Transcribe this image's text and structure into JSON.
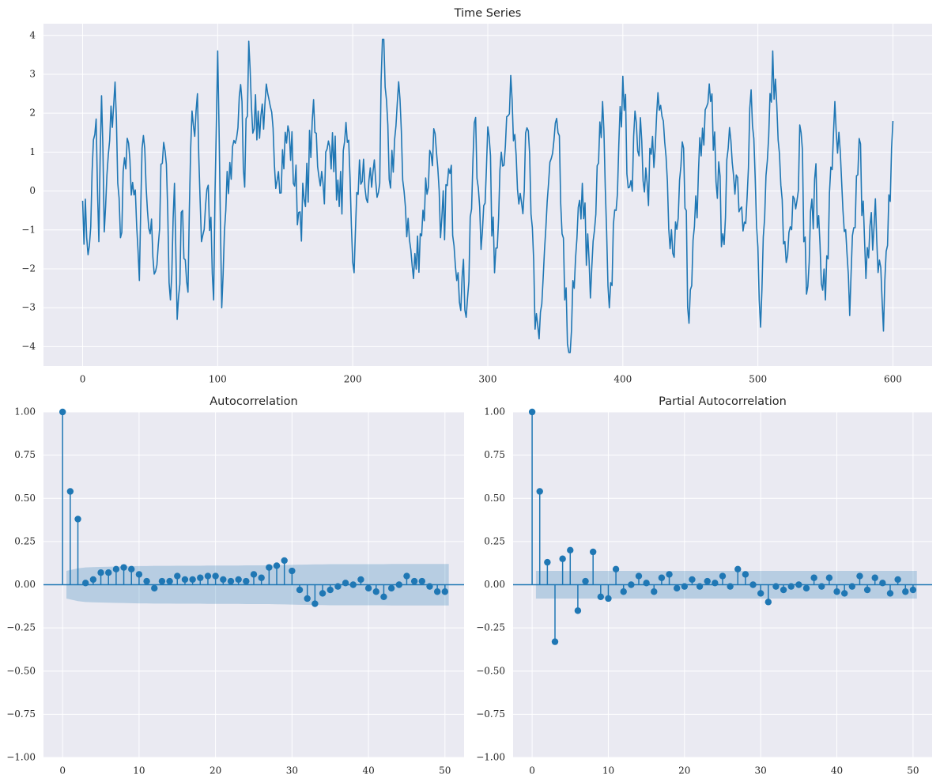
{
  "chart_data": [
    {
      "type": "line",
      "title": "Time Series",
      "xlabel": "",
      "ylabel": "",
      "xlim": [
        -29,
        629
      ],
      "ylim": [
        -4.5,
        4.3
      ],
      "xticks": [
        0,
        100,
        200,
        300,
        400,
        500,
        600
      ],
      "xtick_labels": [
        "0",
        "100",
        "200",
        "300",
        "400",
        "500",
        "600"
      ],
      "yticks": [
        4,
        3,
        2,
        1,
        0,
        -1,
        -2,
        -3,
        -4
      ],
      "ytick_labels": [
        "4",
        "3",
        "2",
        "1",
        "0",
        "−1",
        "−2",
        "−3",
        "−4"
      ],
      "grid": true,
      "color": "#1f77b4",
      "anchor_x": [
        0,
        3,
        5,
        7,
        10,
        12,
        14,
        16,
        20,
        24,
        26,
        28,
        30,
        35,
        38,
        42,
        44,
        47,
        50,
        55,
        60,
        63,
        65,
        68,
        70,
        74,
        78,
        80,
        85,
        88,
        93,
        97,
        100,
        103,
        106,
        112,
        118,
        120,
        123,
        127,
        135,
        145,
        153,
        160,
        165,
        170,
        178,
        185,
        190,
        196,
        201,
        205,
        210,
        215,
        220,
        222,
        227,
        235,
        238,
        245,
        250,
        260,
        265,
        272,
        278,
        285,
        290,
        295,
        300,
        305,
        310,
        318,
        325,
        330,
        335,
        338,
        345,
        352,
        357,
        360,
        364,
        370,
        376,
        385,
        390,
        395,
        400,
        405,
        410,
        418,
        428,
        437,
        445,
        449,
        456,
        465,
        474,
        480,
        490,
        495,
        502,
        511,
        520,
        527,
        532,
        536,
        542,
        550,
        557,
        563,
        568,
        575,
        580,
        587,
        593,
        596,
        600
      ],
      "anchor_y": [
        -0.25,
        -1.2,
        -1.4,
        0.5,
        1.85,
        -1.3,
        2.45,
        -1.05,
        1.3,
        2.8,
        0.2,
        -1.2,
        0.5,
        0.8,
        -0.1,
        -2.3,
        1.1,
        0.1,
        -1.1,
        -1.9,
        1.25,
        -0.5,
        -2.8,
        0.2,
        -3.3,
        -0.5,
        -2.6,
        1.1,
        2.5,
        -1.3,
        0.15,
        -2.8,
        3.6,
        -3.0,
        -0.5,
        1.3,
        2.3,
        0.1,
        3.85,
        1.6,
        2.25,
        0.5,
        1.5,
        -0.55,
        -0.4,
        1.8,
        0.2,
        1.5,
        -0.4,
        1.25,
        -2.1,
        0.8,
        -0.2,
        0.5,
        0.2,
        3.9,
        0.3,
        2.35,
        0.0,
        -2.25,
        -1.1,
        1.6,
        -1.2,
        0.45,
        -2.1,
        -2.75,
        1.75,
        -1.5,
        1.65,
        -2.1,
        1.0,
        2.35,
        -0.3,
        1.55,
        -3.55,
        -3.8,
        0.2,
        1.5,
        -2.8,
        -4.15,
        -2.5,
        0.2,
        -2.75,
        2.3,
        -3.0,
        -0.5,
        2.95,
        0.1,
        1.75,
        0.2,
        2.2,
        -1.6,
        1.1,
        -3.4,
        0.5,
        2.3,
        -1.1,
        1.3,
        -0.8,
        2.6,
        -3.5,
        3.6,
        -1.3,
        -0.2,
        1.5,
        -2.65,
        0.3,
        -2.8,
        2.3,
        -0.5,
        -3.2,
        1.35,
        -2.25,
        -0.2,
        -3.6,
        -1.4,
        1.8
      ],
      "n_points": 600
    },
    {
      "type": "stem",
      "title": "Autocorrelation",
      "xlabel": "",
      "ylabel": "",
      "xlim": [
        -2.5,
        52.5
      ],
      "ylim": [
        -1.0,
        1.0
      ],
      "xticks": [
        0,
        10,
        20,
        30,
        40,
        50
      ],
      "xtick_labels": [
        "0",
        "10",
        "20",
        "30",
        "40",
        "50"
      ],
      "yticks": [
        1.0,
        0.75,
        0.5,
        0.25,
        0.0,
        -0.25,
        -0.5,
        -0.75,
        -1.0
      ],
      "ytick_labels": [
        "1.00",
        "0.75",
        "0.50",
        "0.25",
        "0.00",
        "−0.25",
        "−0.50",
        "−0.75",
        "−1.00"
      ],
      "grid": true,
      "color": "#1f77b4",
      "band_color": "#1f77b4",
      "lags": [
        0,
        1,
        2,
        3,
        4,
        5,
        6,
        7,
        8,
        9,
        10,
        11,
        12,
        13,
        14,
        15,
        16,
        17,
        18,
        19,
        20,
        21,
        22,
        23,
        24,
        25,
        26,
        27,
        28,
        29,
        30,
        31,
        32,
        33,
        34,
        35,
        36,
        37,
        38,
        39,
        40,
        41,
        42,
        43,
        44,
        45,
        46,
        47,
        48,
        49,
        50
      ],
      "values": [
        1.0,
        0.54,
        0.38,
        0.01,
        0.03,
        0.07,
        0.07,
        0.09,
        0.1,
        0.09,
        0.06,
        0.02,
        -0.02,
        0.02,
        0.02,
        0.05,
        0.03,
        0.03,
        0.04,
        0.05,
        0.05,
        0.03,
        0.02,
        0.03,
        0.02,
        0.06,
        0.04,
        0.1,
        0.11,
        0.14,
        0.08,
        -0.03,
        -0.08,
        -0.11,
        -0.05,
        -0.03,
        -0.01,
        0.01,
        0.0,
        0.03,
        -0.02,
        -0.04,
        -0.07,
        -0.02,
        0.0,
        0.05,
        0.02,
        0.02,
        -0.01,
        -0.04,
        -0.04
      ],
      "confint_upper": [
        0.0,
        0.08,
        0.095,
        0.1,
        0.102,
        0.103,
        0.104,
        0.105,
        0.106,
        0.107,
        0.108,
        0.108,
        0.109,
        0.109,
        0.109,
        0.11,
        0.11,
        0.11,
        0.11,
        0.111,
        0.111,
        0.111,
        0.111,
        0.111,
        0.112,
        0.112,
        0.112,
        0.112,
        0.113,
        0.114,
        0.115,
        0.116,
        0.117,
        0.118,
        0.118,
        0.119,
        0.119,
        0.119,
        0.119,
        0.119,
        0.119,
        0.119,
        0.119,
        0.12,
        0.12,
        0.12,
        0.12,
        0.12,
        0.12,
        0.12,
        0.12
      ]
    },
    {
      "type": "stem",
      "title": "Partial Autocorrelation",
      "xlabel": "",
      "ylabel": "",
      "xlim": [
        -2.5,
        52.5
      ],
      "ylim": [
        -1.0,
        1.0
      ],
      "xticks": [
        0,
        10,
        20,
        30,
        40,
        50
      ],
      "xtick_labels": [
        "0",
        "10",
        "20",
        "30",
        "40",
        "50"
      ],
      "yticks": [
        1.0,
        0.75,
        0.5,
        0.25,
        0.0,
        -0.25,
        -0.5,
        -0.75,
        -1.0
      ],
      "ytick_labels": [
        "1.00",
        "0.75",
        "0.50",
        "0.25",
        "0.00",
        "−0.25",
        "−0.50",
        "−0.75",
        "−1.00"
      ],
      "grid": true,
      "color": "#1f77b4",
      "band_color": "#1f77b4",
      "lags": [
        0,
        1,
        2,
        3,
        4,
        5,
        6,
        7,
        8,
        9,
        10,
        11,
        12,
        13,
        14,
        15,
        16,
        17,
        18,
        19,
        20,
        21,
        22,
        23,
        24,
        25,
        26,
        27,
        28,
        29,
        30,
        31,
        32,
        33,
        34,
        35,
        36,
        37,
        38,
        39,
        40,
        41,
        42,
        43,
        44,
        45,
        46,
        47,
        48,
        49,
        50
      ],
      "values": [
        1.0,
        0.54,
        0.13,
        -0.33,
        0.15,
        0.2,
        -0.15,
        0.02,
        0.19,
        -0.07,
        -0.08,
        0.09,
        -0.04,
        0.0,
        0.05,
        0.01,
        -0.04,
        0.04,
        0.06,
        -0.02,
        -0.01,
        0.03,
        -0.01,
        0.02,
        0.01,
        0.05,
        -0.01,
        0.09,
        0.06,
        0.0,
        -0.05,
        -0.1,
        -0.01,
        -0.03,
        -0.01,
        0.0,
        -0.02,
        0.04,
        -0.01,
        0.04,
        -0.04,
        -0.05,
        -0.01,
        0.05,
        -0.03,
        0.04,
        0.01,
        -0.05,
        0.03,
        -0.04,
        -0.03
      ],
      "confint_upper": [
        0.0,
        0.08,
        0.08,
        0.08,
        0.08,
        0.08,
        0.08,
        0.08,
        0.08,
        0.08,
        0.08,
        0.08,
        0.08,
        0.08,
        0.08,
        0.08,
        0.08,
        0.08,
        0.08,
        0.08,
        0.08,
        0.08,
        0.08,
        0.08,
        0.08,
        0.08,
        0.08,
        0.08,
        0.08,
        0.08,
        0.08,
        0.08,
        0.08,
        0.08,
        0.08,
        0.08,
        0.08,
        0.08,
        0.08,
        0.08,
        0.08,
        0.08,
        0.08,
        0.08,
        0.08,
        0.08,
        0.08,
        0.08,
        0.08,
        0.08,
        0.08
      ]
    }
  ]
}
